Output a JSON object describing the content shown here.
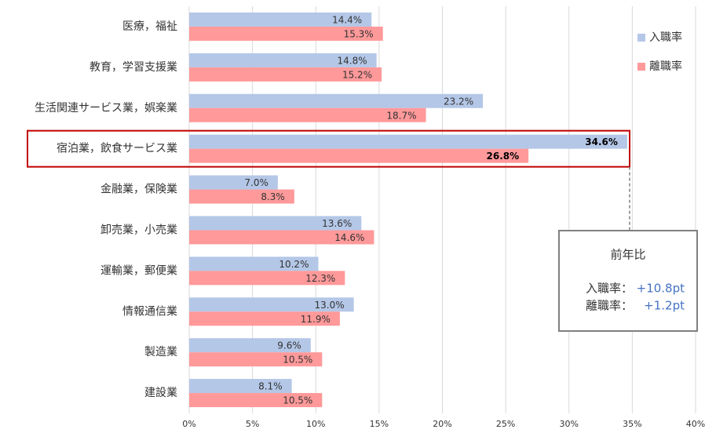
{
  "chart_data": {
    "type": "barh",
    "categories": [
      "医療，福祉",
      "教育，学習支援業",
      "生活関連サービス業，娯楽業",
      "宿泊業，飲食サービス業",
      "金融業，保険業",
      "卸売業，小売業",
      "運輸業，郵便業",
      "情報通信業",
      "製造業",
      "建設業"
    ],
    "series": [
      {
        "name": "入職率",
        "color": "#b4c7e7",
        "values": [
          14.4,
          14.8,
          23.2,
          34.6,
          7.0,
          13.6,
          10.2,
          13.0,
          9.6,
          8.1
        ],
        "value_labels": [
          "14.4%",
          "14.8%",
          "23.2%",
          "34.6%",
          "7.0%",
          "13.6%",
          "10.2%",
          "13.0%",
          "9.6%",
          "8.1%"
        ]
      },
      {
        "name": "離職率",
        "color": "#ff999a",
        "values": [
          15.3,
          15.2,
          18.7,
          26.8,
          8.3,
          14.6,
          12.3,
          11.9,
          10.5,
          10.5
        ],
        "value_labels": [
          "15.3%",
          "15.2%",
          "18.7%",
          "26.8%",
          "8.3%",
          "14.6%",
          "12.3%",
          "11.9%",
          "10.5%",
          "10.5%"
        ]
      }
    ],
    "xlim": [
      0,
      40
    ],
    "xticks": [
      {
        "value": 0,
        "label": "0%"
      },
      {
        "value": 5,
        "label": "5%"
      },
      {
        "value": 10,
        "label": "10%"
      },
      {
        "value": 15,
        "label": "15%"
      },
      {
        "value": 20,
        "label": "20%"
      },
      {
        "value": 25,
        "label": "25%"
      },
      {
        "value": 30,
        "label": "30%"
      },
      {
        "value": 35,
        "label": "35%"
      },
      {
        "value": 40,
        "label": "40%"
      }
    ],
    "grid": true,
    "legend": "right",
    "highlight": "宿泊業，飲食サービス業",
    "highlight_color": "#c00000",
    "annotation": {
      "title": "前年比",
      "rows": [
        {
          "label": "入職率：",
          "value": "+10.8pt"
        },
        {
          "label": "離職率：",
          "value": "+1.2pt"
        }
      ]
    }
  }
}
